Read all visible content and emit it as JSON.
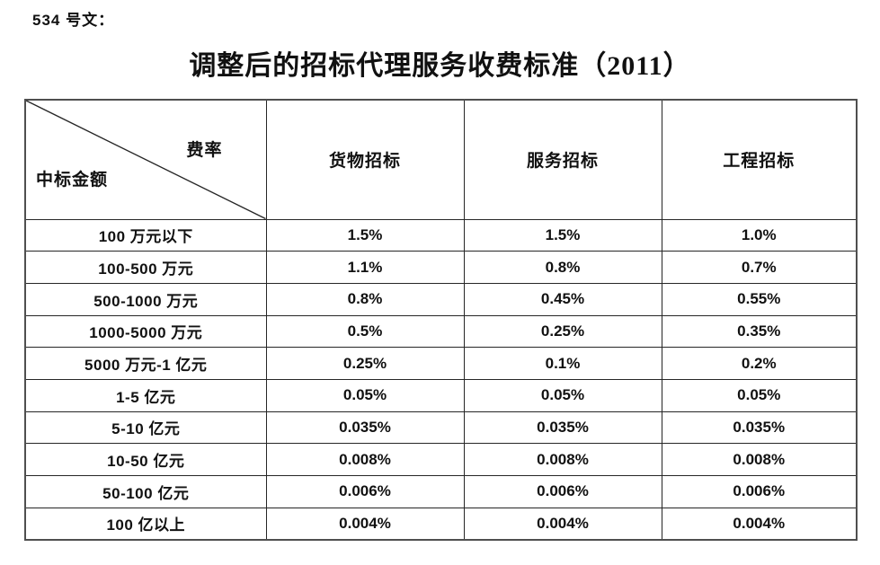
{
  "page": {
    "background": "#ffffff",
    "text_color": "#111111",
    "grid_line_color": "#262626",
    "outer_border_color": "#4f4f4f"
  },
  "document": {
    "doc_label": "534 号文：",
    "title": "调整后的招标代理服务收费标准（2011）"
  },
  "table": {
    "corner": {
      "top_label": "费率",
      "bottom_label": "中标金额"
    },
    "columns": [
      "货物招标",
      "服务招标",
      "工程招标"
    ],
    "rows": [
      {
        "label": "100 万元以下",
        "values": [
          "1.5%",
          "1.5%",
          "1.0%"
        ]
      },
      {
        "label": "100-500 万元",
        "values": [
          "1.1%",
          "0.8%",
          "0.7%"
        ]
      },
      {
        "label": "500-1000 万元",
        "values": [
          "0.8%",
          "0.45%",
          "0.55%"
        ]
      },
      {
        "label": "1000-5000 万元",
        "values": [
          "0.5%",
          "0.25%",
          "0.35%"
        ]
      },
      {
        "label": "5000 万元-1 亿元",
        "values": [
          "0.25%",
          "0.1%",
          "0.2%"
        ]
      },
      {
        "label": "1-5 亿元",
        "values": [
          "0.05%",
          "0.05%",
          "0.05%"
        ]
      },
      {
        "label": "5-10 亿元",
        "values": [
          "0.035%",
          "0.035%",
          "0.035%"
        ]
      },
      {
        "label": "10-50 亿元",
        "values": [
          "0.008%",
          "0.008%",
          "0.008%"
        ]
      },
      {
        "label": "50-100 亿元",
        "values": [
          "0.006%",
          "0.006%",
          "0.006%"
        ]
      },
      {
        "label": "100 亿以上",
        "values": [
          "0.004%",
          "0.004%",
          "0.004%"
        ]
      }
    ]
  }
}
